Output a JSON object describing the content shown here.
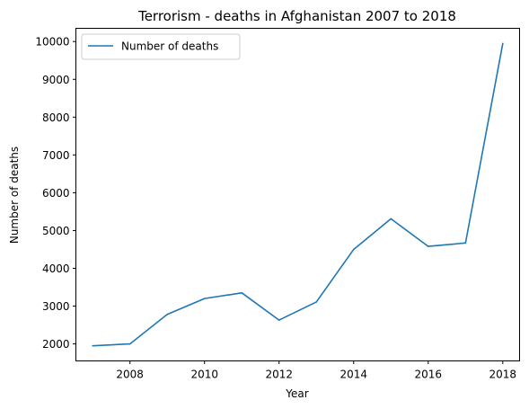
{
  "chart_data": {
    "type": "line",
    "title": "Terrorism - deaths in Afghanistan 2007 to 2018",
    "xlabel": "Year",
    "ylabel": "Number of deaths",
    "xlim": [
      2006.55,
      2018.45
    ],
    "ylim": [
      1550,
      10350
    ],
    "xticks": [
      2008,
      2010,
      2012,
      2014,
      2016,
      2018
    ],
    "yticks": [
      2000,
      3000,
      4000,
      5000,
      6000,
      7000,
      8000,
      9000,
      10000
    ],
    "grid": false,
    "legend": {
      "position": "top-left"
    },
    "series": [
      {
        "name": "Number of deaths",
        "color": "#1f77b4",
        "x": [
          2007,
          2008,
          2009,
          2010,
          2011,
          2012,
          2013,
          2014,
          2015,
          2016,
          2017,
          2018
        ],
        "y": [
          1950,
          2000,
          2780,
          3200,
          3350,
          2630,
          3110,
          4500,
          5310,
          4580,
          4670,
          9950
        ]
      }
    ]
  }
}
